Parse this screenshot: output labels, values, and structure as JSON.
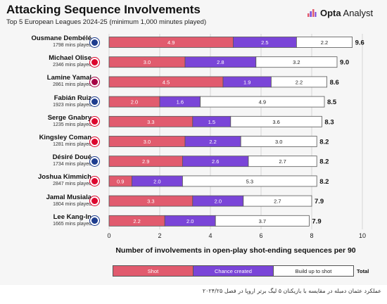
{
  "header": {
    "title": "Attacking Sequence Involvements",
    "subtitle": "Top 5 European Leagues 2024-25 (minimum 1,000 minutes played)",
    "brand_bold": "Opta",
    "brand_light": " Analyst"
  },
  "colors": {
    "shot": "#e15b6e",
    "chance": "#7a45d8",
    "build": "#ffffff",
    "psg": "#1d3c8e",
    "bayern": "#dc052d",
    "barca": "#a50044"
  },
  "chart_data": {
    "type": "bar",
    "orientation": "horizontal",
    "stacked": true,
    "categories": [
      "Ousmane Dembélé",
      "Michael Olise",
      "Lamine Yamal",
      "Fabián Ruiz",
      "Serge Gnabry",
      "Kingsley Coman",
      "Désiré Doué",
      "Joshua Kimmich",
      "Jamal Musiala",
      "Lee Kang-In"
    ],
    "minutes_labels": [
      "1798 mins played",
      "2346 mins played",
      "2861 mins played",
      "1923 mins played",
      "1235 mins played",
      "1281 mins played",
      "1734 mins played",
      "2847 mins played",
      "1804 mins played",
      "1665 mins played"
    ],
    "clubs": [
      "psg",
      "bayern",
      "barca",
      "psg",
      "bayern",
      "bayern",
      "psg",
      "bayern",
      "bayern",
      "psg"
    ],
    "series": [
      {
        "name": "Shot",
        "values": [
          4.9,
          3.0,
          4.5,
          2.0,
          3.3,
          3.0,
          2.9,
          0.9,
          3.3,
          2.2
        ]
      },
      {
        "name": "Chance created",
        "values": [
          2.5,
          2.8,
          1.9,
          1.6,
          1.5,
          2.2,
          2.6,
          2.0,
          2.0,
          2.0
        ]
      },
      {
        "name": "Build up to shot",
        "values": [
          2.2,
          3.2,
          2.2,
          4.9,
          3.6,
          3.0,
          2.7,
          5.3,
          2.7,
          3.7
        ]
      }
    ],
    "totals": [
      9.6,
      9.0,
      8.6,
      8.5,
      8.3,
      8.2,
      8.2,
      8.2,
      7.9,
      7.9
    ],
    "series_labels": [
      [
        "4.9",
        "3.0",
        "4.5",
        "2.0",
        "3.3",
        "3.0",
        "2.9",
        "0.9",
        "3.3",
        "2.2"
      ],
      [
        "2.5",
        "2.8",
        "1.9",
        "1.6",
        "1.5",
        "2.2",
        "2.6",
        "2.0",
        "2.0",
        "2.0"
      ],
      [
        "2.2",
        "3.2",
        "2.2",
        "4.9",
        "3.6",
        "3.0",
        "2.7",
        "5.3",
        "2.7",
        "3.7"
      ]
    ],
    "total_labels": [
      "9.6",
      "9.0",
      "8.6",
      "8.5",
      "8.3",
      "8.2",
      "8.2",
      "8.2",
      "7.9",
      "7.9"
    ],
    "xlim": [
      0,
      10
    ],
    "xticks": [
      0,
      2,
      4,
      6,
      8,
      10
    ],
    "xlabel": "Number of involvements in open-play shot-ending sequences per 90",
    "grid": true
  },
  "legend": {
    "shot": "Shot",
    "chance": "Chance created",
    "build": "Build up to shot",
    "total": "Total"
  },
  "caption": "عملکرد عثمان دمبله در مقایسه با بازیکنان ۵ لیگ برتر اروپا در فصل ۲۰۲۴/۲۵"
}
